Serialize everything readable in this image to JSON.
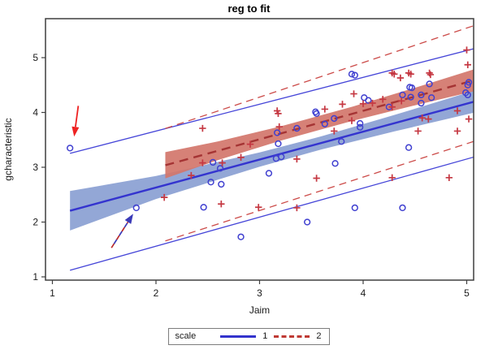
{
  "title": "reg to fit",
  "axes": {
    "x": {
      "label": "Jaim",
      "tick_labels": [
        "1",
        "2",
        "3",
        "4",
        "5"
      ],
      "ticks": [
        1,
        2,
        3,
        4,
        5
      ]
    },
    "y": {
      "label": "gcharacteristic",
      "tick_labels": [
        "1",
        "2",
        "3",
        "4",
        "5"
      ],
      "ticks": [
        1,
        2,
        3,
        4,
        5
      ]
    }
  },
  "legend": {
    "title": "scale",
    "entries": [
      {
        "label": "1",
        "style": "solid",
        "color": "#3333cc"
      },
      {
        "label": "2",
        "style": "dashed",
        "color": "#bf3a34"
      }
    ]
  },
  "colors": {
    "circle_marker": "#4040d0",
    "plus_marker": "#c53842",
    "blue_line": "#3434cf",
    "blue_thin_line": "#4545d8",
    "blue_band": "#8aa0d2",
    "red_line": "#a53434",
    "red_thin_line": "#cc4b49",
    "red_band": "#d3766b",
    "red_arrow": "#ee2222",
    "dashed_arrow_blue": "#3a3ab8",
    "dashed_arrow_red": "#bb2a2a",
    "axis": "#3f3f3f"
  },
  "chart_data": {
    "type": "scatter",
    "title": "reg to fit",
    "xlabel": "Jaim",
    "ylabel": "gcharacteristic",
    "xlim": [
      0.93,
      5.07
    ],
    "ylim": [
      0.94,
      5.71
    ],
    "grid": false,
    "legend_position": "bottom-outside",
    "series": [
      {
        "name": "scale 1",
        "marker": "circle",
        "color": "#4040d0",
        "points": [
          [
            1.17,
            3.35
          ],
          [
            1.81,
            2.26
          ],
          [
            2.46,
            2.27
          ],
          [
            2.53,
            2.73
          ],
          [
            2.55,
            3.09
          ],
          [
            2.62,
            2.98
          ],
          [
            2.63,
            2.69
          ],
          [
            2.82,
            1.73
          ],
          [
            3.09,
            2.89
          ],
          [
            3.16,
            3.16
          ],
          [
            3.21,
            3.19
          ],
          [
            3.18,
            3.43
          ],
          [
            3.17,
            3.63
          ],
          [
            3.36,
            3.71
          ],
          [
            3.46,
            2.0
          ],
          [
            3.54,
            4.01
          ],
          [
            3.55,
            3.98
          ],
          [
            3.63,
            3.79
          ],
          [
            3.72,
            3.89
          ],
          [
            3.73,
            3.07
          ],
          [
            3.79,
            3.47
          ],
          [
            3.89,
            4.7
          ],
          [
            3.92,
            4.68
          ],
          [
            3.92,
            2.26
          ],
          [
            3.97,
            3.8
          ],
          [
            3.97,
            3.73
          ],
          [
            4.01,
            4.27
          ],
          [
            4.05,
            4.22
          ],
          [
            4.25,
            4.1
          ],
          [
            4.38,
            4.32
          ],
          [
            4.38,
            2.26
          ],
          [
            4.44,
            3.36
          ],
          [
            4.45,
            4.46
          ],
          [
            4.46,
            4.28
          ],
          [
            4.47,
            4.45
          ],
          [
            4.56,
            4.32
          ],
          [
            4.56,
            4.17
          ],
          [
            4.64,
            4.52
          ],
          [
            4.66,
            4.27
          ],
          [
            4.99,
            4.36
          ],
          [
            5.01,
            4.5
          ],
          [
            5.01,
            4.32
          ],
          [
            5.02,
            4.55
          ]
        ]
      },
      {
        "name": "scale 2",
        "marker": "plus",
        "color": "#c53842",
        "points": [
          [
            2.08,
            2.45
          ],
          [
            2.34,
            2.85
          ],
          [
            2.45,
            3.71
          ],
          [
            2.45,
            3.08
          ],
          [
            2.63,
            2.33
          ],
          [
            2.64,
            3.08
          ],
          [
            2.82,
            3.18
          ],
          [
            2.91,
            3.42
          ],
          [
            2.99,
            2.27
          ],
          [
            3.17,
            4.03
          ],
          [
            3.18,
            3.98
          ],
          [
            3.19,
            3.74
          ],
          [
            3.36,
            3.15
          ],
          [
            3.36,
            2.26
          ],
          [
            3.55,
            2.8
          ],
          [
            3.63,
            4.06
          ],
          [
            3.72,
            3.66
          ],
          [
            3.8,
            4.15
          ],
          [
            3.89,
            3.85
          ],
          [
            3.91,
            4.34
          ],
          [
            4.0,
            4.16
          ],
          [
            4.09,
            4.17
          ],
          [
            4.19,
            4.24
          ],
          [
            4.28,
            4.72
          ],
          [
            4.28,
            4.1
          ],
          [
            4.28,
            2.81
          ],
          [
            4.3,
            4.7
          ],
          [
            4.36,
            4.63
          ],
          [
            4.37,
            4.21
          ],
          [
            4.44,
            4.72
          ],
          [
            4.46,
            4.7
          ],
          [
            4.53,
            3.66
          ],
          [
            4.57,
            3.9
          ],
          [
            4.63,
            3.88
          ],
          [
            4.64,
            4.72
          ],
          [
            4.65,
            4.69
          ],
          [
            4.83,
            2.81
          ],
          [
            4.91,
            4.03
          ],
          [
            4.91,
            3.66
          ],
          [
            5.0,
            5.14
          ],
          [
            5.01,
            4.87
          ],
          [
            5.02,
            3.88
          ]
        ]
      }
    ],
    "fits": [
      {
        "name": "1",
        "color": "#3434cf",
        "thin_color": "#4545d8",
        "style": "solid",
        "x_range": [
          1.17,
          5.07
        ],
        "intercept": 1.61,
        "slope": 0.51,
        "ci_band": {
          "color": "#8aa0d2",
          "x": [
            1.17,
            2.0,
            3.0,
            3.6,
            4.3,
            5.07
          ],
          "halfwidth": [
            0.36,
            0.21,
            0.13,
            0.12,
            0.15,
            0.2
          ]
        },
        "pred_upper": {
          "intercept": 2.68,
          "slope": 0.49
        },
        "pred_lower": {
          "intercept": 0.5,
          "slope": 0.53
        }
      },
      {
        "name": "2",
        "color": "#a53434",
        "thin_color": "#cc4b49",
        "style": "dashed",
        "x_range": [
          2.09,
          5.07
        ],
        "intercept": 1.95,
        "slope": 0.52,
        "ci_band": {
          "color": "#d3766b",
          "x": [
            2.09,
            2.6,
            3.2,
            3.9,
            4.5,
            5.07
          ],
          "halfwidth": [
            0.24,
            0.17,
            0.13,
            0.13,
            0.16,
            0.2
          ]
        },
        "pred_upper": {
          "intercept": 2.39,
          "slope": 0.63
        },
        "pred_lower": {
          "intercept": 0.38,
          "slope": 0.61
        }
      }
    ],
    "annotations": [
      {
        "type": "arrow",
        "style": "solid",
        "color": "#ee2222",
        "from": [
          1.25,
          4.12
        ],
        "to": [
          1.21,
          3.56
        ],
        "points_at": [
          1.17,
          3.35
        ]
      },
      {
        "type": "arrow",
        "style": "dashed",
        "colors": [
          "#3a3ab8",
          "#bb2a2a"
        ],
        "from": [
          1.57,
          1.53
        ],
        "to": [
          1.78,
          2.15
        ],
        "points_at": [
          1.81,
          2.26
        ]
      }
    ]
  }
}
